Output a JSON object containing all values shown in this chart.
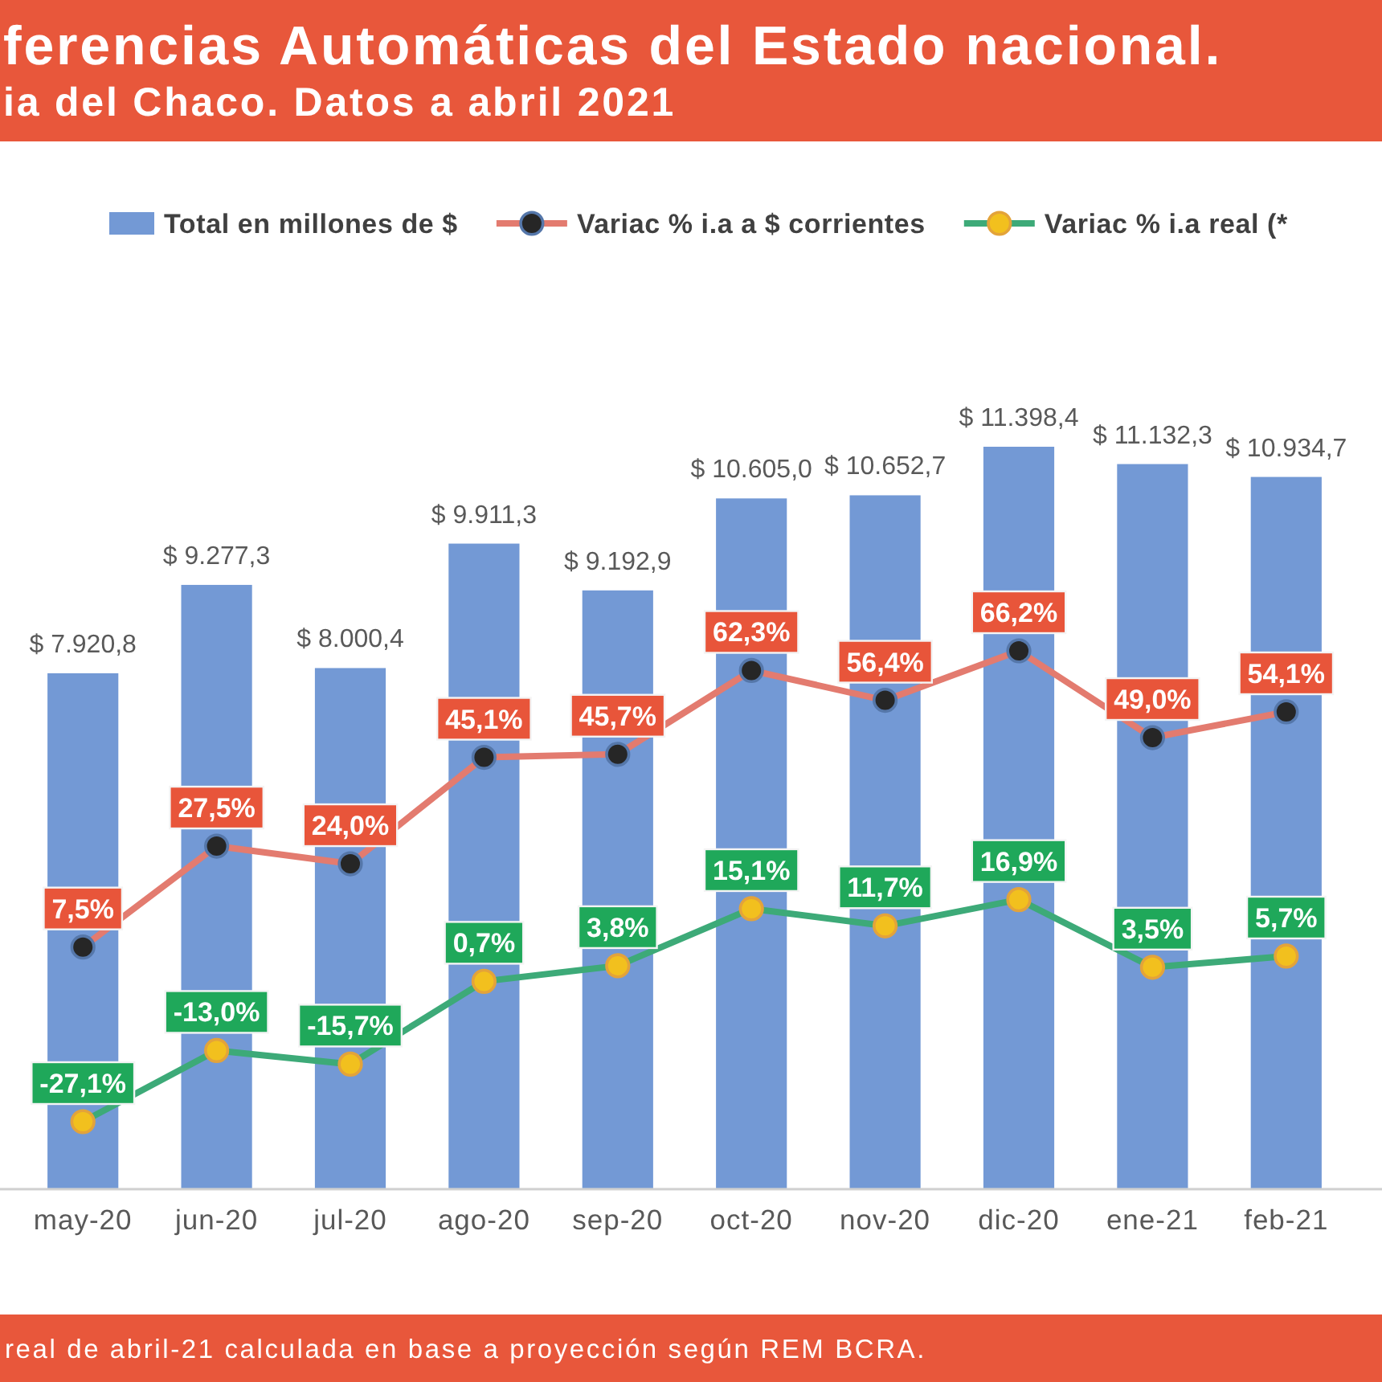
{
  "chart_data": {
    "type": "bar",
    "title": "ferencias Automáticas del Estado nacional.",
    "subtitle": "ia del Chaco. Datos a abril 2021",
    "categories": [
      "may-20",
      "jun-20",
      "jul-20",
      "ago-20",
      "sep-20",
      "oct-20",
      "nov-20",
      "dic-20",
      "ene-21",
      "feb-21"
    ],
    "series": [
      {
        "name": "Total en millones de $",
        "color": "#7399d5",
        "values": [
          7920.8,
          9277.3,
          8000.4,
          9911.3,
          9192.9,
          10605.0,
          10652.7,
          11398.4,
          11132.3,
          10934.7
        ],
        "value_labels": [
          "$ 7.920,8",
          "$ 9.277,3",
          "$ 8.000,4",
          "$ 9.911,3",
          "$ 9.192,9",
          "$ 10.605,0",
          "$ 10.652,7",
          "$ 11.398,4",
          "$ 11.132,3",
          "$ 10.934,7"
        ]
      },
      {
        "name": "Variac % i.a a $ corrientes",
        "type": "line",
        "axis": "y2",
        "color": "#e37b6f",
        "values": [
          7.5,
          27.5,
          24.0,
          45.1,
          45.7,
          62.3,
          56.4,
          66.2,
          49.0,
          54.1
        ],
        "value_labels": [
          "7,5%",
          "27,5%",
          "24,0%",
          "45,1%",
          "45,7%",
          "62,3%",
          "56,4%",
          "66,2%",
          "49,0%",
          "54,1%"
        ]
      },
      {
        "name": "Variac % i.a real (*",
        "type": "line",
        "axis": "y2",
        "color": "#3daa78",
        "values": [
          -27.1,
          -13.0,
          -15.7,
          0.7,
          3.8,
          15.1,
          11.7,
          16.9,
          3.5,
          5.7
        ],
        "value_labels": [
          "-27,1%",
          "-13,0%",
          "-15,7%",
          "0,7%",
          "3,8%",
          "15,1%",
          "11,7%",
          "16,9%",
          "3,5%",
          "5,7%"
        ]
      }
    ],
    "legend": "top",
    "marker": "circle",
    "tick_labels": "x",
    "annotations": [
      "real de abril-21 calculada en base a proyección según REM BCRA."
    ]
  }
}
